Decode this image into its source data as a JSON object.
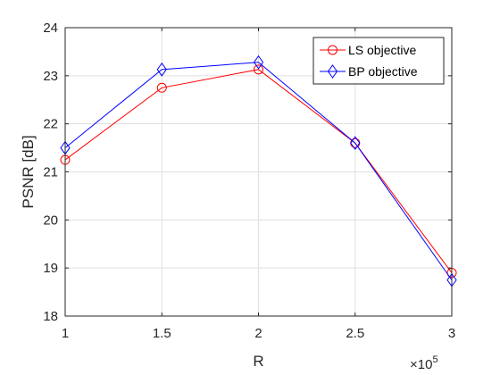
{
  "chart_data": {
    "type": "line",
    "xlabel": "R",
    "ylabel": "PSNR [dB]",
    "x_exponent_base": "×10",
    "x_exponent_power": "5",
    "xlim": [
      1,
      3
    ],
    "ylim": [
      18,
      24
    ],
    "xticks": [
      1,
      1.5,
      2,
      2.5,
      3
    ],
    "xtick_labels": [
      "1",
      "1.5",
      "2",
      "2.5",
      "3"
    ],
    "yticks": [
      18,
      19,
      20,
      21,
      22,
      23,
      24
    ],
    "ytick_labels": [
      "18",
      "19",
      "20",
      "21",
      "22",
      "23",
      "24"
    ],
    "grid": true,
    "legend_position": "top-right",
    "x": [
      1,
      1.5,
      2,
      2.5,
      3
    ],
    "series": [
      {
        "name": "LS objective",
        "color": "#ff0000",
        "marker": "circle",
        "values": [
          21.25,
          22.75,
          23.13,
          21.6,
          18.9
        ]
      },
      {
        "name": "BP objective",
        "color": "#0000ff",
        "marker": "diamond",
        "values": [
          21.5,
          23.13,
          23.28,
          21.6,
          18.75
        ]
      }
    ]
  }
}
